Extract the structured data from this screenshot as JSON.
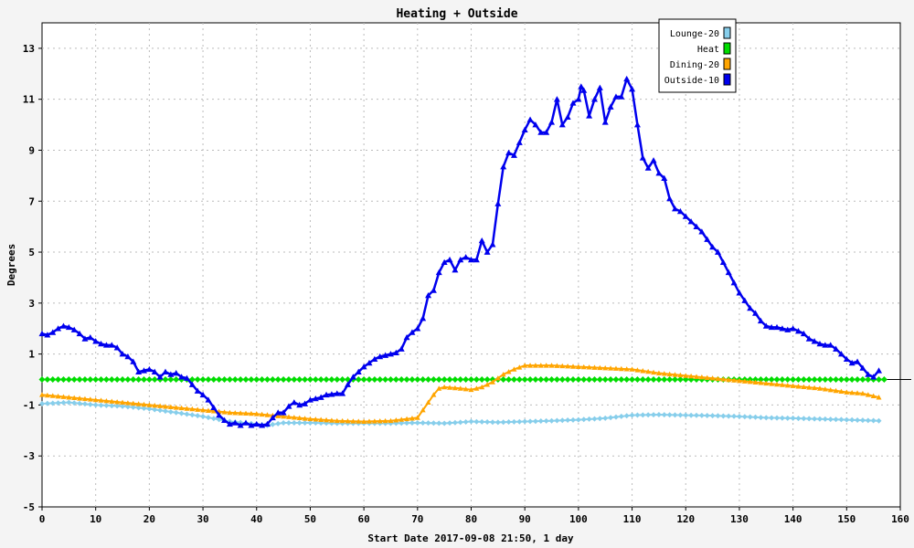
{
  "chart_data": {
    "type": "line",
    "title": "Heating + Outside",
    "xlabel": "Start Date 2017-09-08 21:50, 1 day",
    "ylabel": "Degrees",
    "xlim": [
      0,
      160
    ],
    "ylim": [
      -5,
      14
    ],
    "xticks": [
      0,
      10,
      20,
      30,
      40,
      50,
      60,
      70,
      80,
      90,
      100,
      110,
      120,
      130,
      140,
      150,
      160
    ],
    "yticks": [
      -5,
      -3,
      -1,
      1,
      3,
      5,
      7,
      9,
      11,
      13
    ],
    "grid": true,
    "legend_position": "top-right",
    "series": [
      {
        "name": "Lounge-20",
        "color": "#87ceeb",
        "marker": "diamond",
        "points": [
          [
            0,
            -0.95
          ],
          [
            5,
            -0.9
          ],
          [
            10,
            -1.0
          ],
          [
            15,
            -1.05
          ],
          [
            20,
            -1.15
          ],
          [
            25,
            -1.3
          ],
          [
            30,
            -1.45
          ],
          [
            35,
            -1.65
          ],
          [
            40,
            -1.75
          ],
          [
            42,
            -1.8
          ],
          [
            45,
            -1.7
          ],
          [
            50,
            -1.7
          ],
          [
            55,
            -1.72
          ],
          [
            60,
            -1.72
          ],
          [
            65,
            -1.72
          ],
          [
            70,
            -1.7
          ],
          [
            75,
            -1.72
          ],
          [
            80,
            -1.65
          ],
          [
            85,
            -1.68
          ],
          [
            90,
            -1.65
          ],
          [
            95,
            -1.62
          ],
          [
            100,
            -1.58
          ],
          [
            105,
            -1.52
          ],
          [
            110,
            -1.4
          ],
          [
            115,
            -1.38
          ],
          [
            120,
            -1.4
          ],
          [
            125,
            -1.42
          ],
          [
            130,
            -1.45
          ],
          [
            135,
            -1.5
          ],
          [
            140,
            -1.52
          ],
          [
            145,
            -1.55
          ],
          [
            150,
            -1.58
          ],
          [
            156,
            -1.62
          ]
        ]
      },
      {
        "name": "Heat",
        "color": "#00dd00",
        "marker": "diamond",
        "points": [
          [
            0,
            0
          ],
          [
            157,
            0
          ]
        ]
      },
      {
        "name": "Dining-20",
        "color": "#ffa500",
        "marker": "triangle",
        "points": [
          [
            0,
            -0.6
          ],
          [
            5,
            -0.7
          ],
          [
            10,
            -0.8
          ],
          [
            15,
            -0.9
          ],
          [
            20,
            -1.0
          ],
          [
            25,
            -1.1
          ],
          [
            30,
            -1.2
          ],
          [
            35,
            -1.3
          ],
          [
            40,
            -1.35
          ],
          [
            45,
            -1.45
          ],
          [
            50,
            -1.55
          ],
          [
            55,
            -1.62
          ],
          [
            60,
            -1.65
          ],
          [
            65,
            -1.62
          ],
          [
            70,
            -1.5
          ],
          [
            71,
            -1.2
          ],
          [
            72,
            -0.9
          ],
          [
            73,
            -0.6
          ],
          [
            74,
            -0.35
          ],
          [
            75,
            -0.3
          ],
          [
            78,
            -0.35
          ],
          [
            80,
            -0.4
          ],
          [
            82,
            -0.3
          ],
          [
            84,
            -0.1
          ],
          [
            86,
            0.2
          ],
          [
            88,
            0.4
          ],
          [
            90,
            0.55
          ],
          [
            95,
            0.55
          ],
          [
            100,
            0.5
          ],
          [
            105,
            0.45
          ],
          [
            110,
            0.4
          ],
          [
            115,
            0.25
          ],
          [
            120,
            0.15
          ],
          [
            125,
            0.05
          ],
          [
            130,
            -0.05
          ],
          [
            135,
            -0.15
          ],
          [
            140,
            -0.25
          ],
          [
            145,
            -0.35
          ],
          [
            150,
            -0.5
          ],
          [
            153,
            -0.55
          ],
          [
            156,
            -0.7
          ]
        ]
      },
      {
        "name": "Outside-10",
        "color": "#0000ee",
        "marker": "triangle",
        "points": [
          [
            0,
            1.8
          ],
          [
            1,
            1.75
          ],
          [
            2,
            1.85
          ],
          [
            3,
            2.0
          ],
          [
            4,
            2.1
          ],
          [
            5,
            2.05
          ],
          [
            6,
            1.95
          ],
          [
            7,
            1.8
          ],
          [
            8,
            1.6
          ],
          [
            9,
            1.65
          ],
          [
            10,
            1.5
          ],
          [
            11,
            1.4
          ],
          [
            12,
            1.35
          ],
          [
            13,
            1.35
          ],
          [
            14,
            1.25
          ],
          [
            15,
            1.0
          ],
          [
            16,
            0.9
          ],
          [
            17,
            0.7
          ],
          [
            18,
            0.3
          ],
          [
            19,
            0.35
          ],
          [
            20,
            0.4
          ],
          [
            21,
            0.3
          ],
          [
            22,
            0.1
          ],
          [
            23,
            0.3
          ],
          [
            24,
            0.2
          ],
          [
            25,
            0.25
          ],
          [
            26,
            0.1
          ],
          [
            27,
            0.05
          ],
          [
            28,
            -0.2
          ],
          [
            29,
            -0.45
          ],
          [
            30,
            -0.6
          ],
          [
            31,
            -0.8
          ],
          [
            32,
            -1.1
          ],
          [
            33,
            -1.4
          ],
          [
            34,
            -1.6
          ],
          [
            35,
            -1.75
          ],
          [
            36,
            -1.7
          ],
          [
            37,
            -1.8
          ],
          [
            38,
            -1.7
          ],
          [
            39,
            -1.8
          ],
          [
            40,
            -1.75
          ],
          [
            41,
            -1.8
          ],
          [
            42,
            -1.75
          ],
          [
            43,
            -1.5
          ],
          [
            44,
            -1.3
          ],
          [
            45,
            -1.3
          ],
          [
            46,
            -1.05
          ],
          [
            47,
            -0.9
          ],
          [
            48,
            -1.0
          ],
          [
            49,
            -0.95
          ],
          [
            50,
            -0.8
          ],
          [
            51,
            -0.75
          ],
          [
            52,
            -0.7
          ],
          [
            53,
            -0.6
          ],
          [
            54,
            -0.58
          ],
          [
            55,
            -0.55
          ],
          [
            56,
            -0.55
          ],
          [
            57,
            -0.2
          ],
          [
            58,
            0.1
          ],
          [
            59,
            0.3
          ],
          [
            60,
            0.5
          ],
          [
            61,
            0.65
          ],
          [
            62,
            0.8
          ],
          [
            63,
            0.9
          ],
          [
            64,
            0.95
          ],
          [
            65,
            1.0
          ],
          [
            66,
            1.05
          ],
          [
            67,
            1.2
          ],
          [
            68,
            1.65
          ],
          [
            69,
            1.85
          ],
          [
            70,
            2.0
          ],
          [
            71,
            2.4
          ],
          [
            72,
            3.3
          ],
          [
            73,
            3.5
          ],
          [
            74,
            4.2
          ],
          [
            75,
            4.6
          ],
          [
            76,
            4.7
          ],
          [
            77,
            4.3
          ],
          [
            78,
            4.7
          ],
          [
            79,
            4.8
          ],
          [
            80,
            4.7
          ],
          [
            81,
            4.7
          ],
          [
            82,
            5.45
          ],
          [
            83,
            5.0
          ],
          [
            84,
            5.3
          ],
          [
            85,
            6.9
          ],
          [
            86,
            8.35
          ],
          [
            87,
            8.9
          ],
          [
            88,
            8.8
          ],
          [
            89,
            9.3
          ],
          [
            90,
            9.8
          ],
          [
            91,
            10.2
          ],
          [
            92,
            10.0
          ],
          [
            93,
            9.7
          ],
          [
            94,
            9.7
          ],
          [
            95,
            10.1
          ],
          [
            96,
            11.0
          ],
          [
            97,
            10.0
          ],
          [
            98,
            10.3
          ],
          [
            99,
            10.85
          ],
          [
            100,
            11.0
          ],
          [
            100.5,
            11.5
          ],
          [
            101,
            11.35
          ],
          [
            102,
            10.35
          ],
          [
            103,
            11.0
          ],
          [
            104,
            11.45
          ],
          [
            105,
            10.1
          ],
          [
            106,
            10.7
          ],
          [
            107,
            11.1
          ],
          [
            108,
            11.1
          ],
          [
            109,
            11.8
          ],
          [
            110,
            11.4
          ],
          [
            111,
            10.0
          ],
          [
            112,
            8.7
          ],
          [
            113,
            8.3
          ],
          [
            114,
            8.6
          ],
          [
            115,
            8.1
          ],
          [
            116,
            7.9
          ],
          [
            117,
            7.1
          ],
          [
            118,
            6.7
          ],
          [
            119,
            6.6
          ],
          [
            120,
            6.4
          ],
          [
            121,
            6.2
          ],
          [
            122,
            6.0
          ],
          [
            123,
            5.8
          ],
          [
            124,
            5.5
          ],
          [
            125,
            5.2
          ],
          [
            126,
            5.0
          ],
          [
            127,
            4.6
          ],
          [
            128,
            4.2
          ],
          [
            129,
            3.8
          ],
          [
            130,
            3.4
          ],
          [
            131,
            3.1
          ],
          [
            132,
            2.8
          ],
          [
            133,
            2.6
          ],
          [
            134,
            2.3
          ],
          [
            135,
            2.1
          ],
          [
            136,
            2.05
          ],
          [
            137,
            2.05
          ],
          [
            138,
            2.0
          ],
          [
            139,
            1.95
          ],
          [
            140,
            2.0
          ],
          [
            141,
            1.9
          ],
          [
            142,
            1.8
          ],
          [
            143,
            1.6
          ],
          [
            144,
            1.5
          ],
          [
            145,
            1.4
          ],
          [
            146,
            1.35
          ],
          [
            147,
            1.35
          ],
          [
            148,
            1.2
          ],
          [
            149,
            1.0
          ],
          [
            150,
            0.8
          ],
          [
            151,
            0.65
          ],
          [
            152,
            0.7
          ],
          [
            153,
            0.45
          ],
          [
            154,
            0.2
          ],
          [
            155,
            0.1
          ],
          [
            156,
            0.35
          ]
        ]
      }
    ]
  }
}
